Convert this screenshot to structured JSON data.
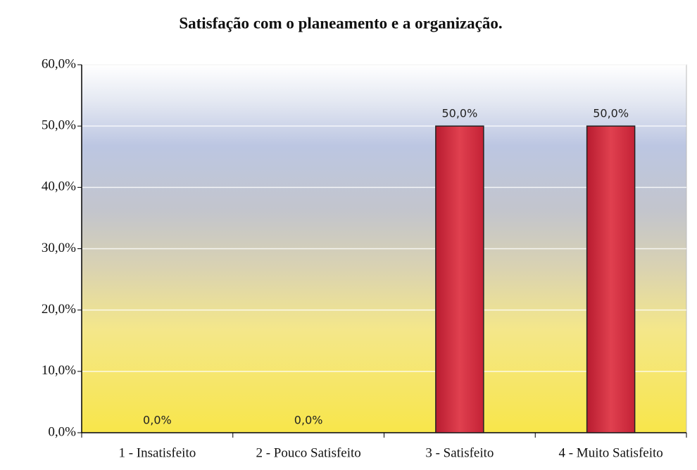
{
  "chart_data": {
    "type": "bar",
    "title": "Satisfação com o planeamento e a organização.",
    "categories": [
      "1 - Insatisfeito",
      "2 - Pouco Satisfeito",
      "3 - Satisfeito",
      "4 - Muito Satisfeito"
    ],
    "values": [
      0,
      0,
      50,
      50
    ],
    "value_labels": [
      "0,0%",
      "0,0%",
      "50,0%",
      "50,0%"
    ],
    "color": "#d0283c",
    "ylim": [
      0,
      60
    ],
    "yticks": [
      {
        "value": 0,
        "label": "0,0%"
      },
      {
        "value": 10,
        "label": "10,0%"
      },
      {
        "value": 20,
        "label": "20,0%"
      },
      {
        "value": 30,
        "label": "30,0%"
      },
      {
        "value": 40,
        "label": "40,0%"
      },
      {
        "value": 50,
        "label": "50,0%"
      },
      {
        "value": 60,
        "label": "60,0%"
      }
    ],
    "grid": true
  }
}
